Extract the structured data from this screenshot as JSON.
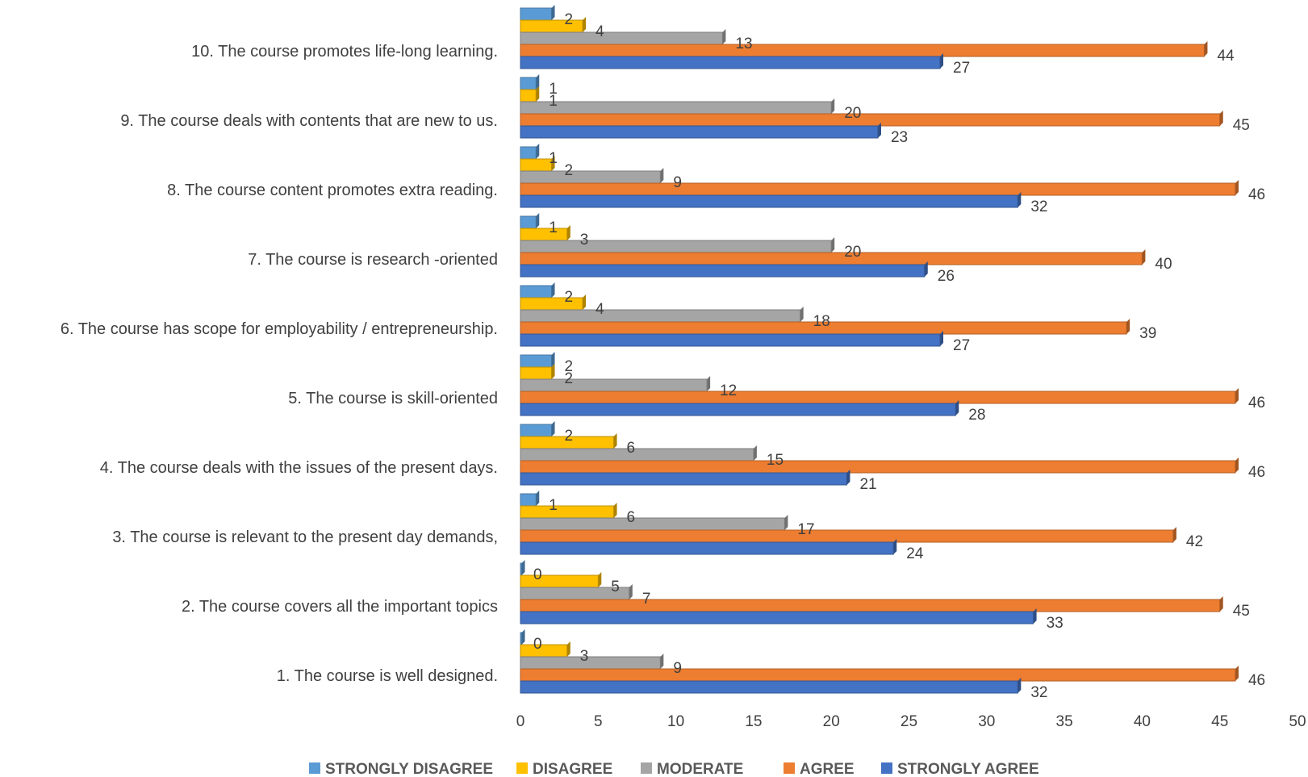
{
  "chart_data": {
    "type": "bar",
    "orientation": "horizontal",
    "categories": [
      "1. The course is well designed.",
      "2. The course covers all the important topics",
      "3. The course is relevant to the present day demands,",
      "4. The course deals with the issues of the present days.",
      "5. The course is skill-oriented",
      "6. The course has scope for employability / entrepreneurship.",
      "7. The course is research -oriented",
      "8. The course content promotes extra reading.",
      "9. The course deals with contents that are new to us.",
      "10. The course promotes life-long learning."
    ],
    "series": [
      {
        "name": "STRONGLY DISAGREE",
        "color": "#5B9BD5",
        "values": [
          0,
          0,
          1,
          2,
          2,
          2,
          1,
          1,
          1,
          2
        ]
      },
      {
        "name": "DISAGREE",
        "color": "#FFC000",
        "values": [
          3,
          5,
          6,
          6,
          2,
          4,
          3,
          2,
          1,
          4
        ]
      },
      {
        "name": "MODERATE",
        "color": "#A5A5A5",
        "values": [
          9,
          7,
          17,
          15,
          12,
          18,
          20,
          9,
          20,
          13
        ]
      },
      {
        "name": "AGREE",
        "color": "#ED7D31",
        "values": [
          46,
          45,
          42,
          46,
          46,
          39,
          40,
          46,
          45,
          44
        ]
      },
      {
        "name": "STRONGLY AGREE",
        "color": "#4472C4",
        "values": [
          32,
          33,
          24,
          21,
          28,
          27,
          26,
          32,
          23,
          27
        ]
      }
    ],
    "xticks": [
      "0",
      "5",
      "10",
      "15",
      "20",
      "25",
      "30",
      "35",
      "40",
      "45",
      "50"
    ],
    "xlim": [
      0,
      50
    ],
    "title": "",
    "xlabel": "",
    "ylabel": "",
    "legend_position": "bottom",
    "grid": false,
    "data_labels": true
  }
}
